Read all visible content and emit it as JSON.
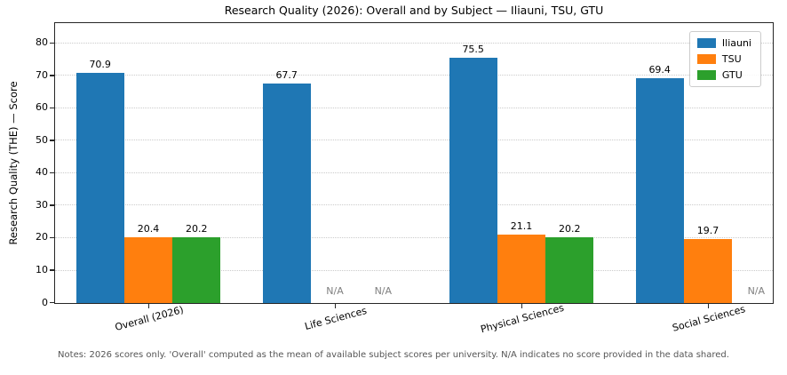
{
  "title": "Research Quality (2026): Overall and by Subject — Iliauni, TSU, GTU",
  "note": "Notes: 2026 scores only. 'Overall' computed as the mean of available subject scores per university. N/A indicates no score provided in the data shared.",
  "chart_data": {
    "type": "bar",
    "title": "Research Quality (2026): Overall and by Subject — Iliauni, TSU, GTU",
    "xlabel": "",
    "ylabel": "Research Quality (THE) — Score",
    "categories": [
      "Overall (2026)",
      "Life Sciences",
      "Physical Sciences",
      "Social Sciences"
    ],
    "series": [
      {
        "name": "Iliauni",
        "color": "#1f77b4",
        "values": [
          70.9,
          67.7,
          75.5,
          69.4
        ]
      },
      {
        "name": "TSU",
        "color": "#ff7f0e",
        "values": [
          20.4,
          null,
          21.1,
          19.7
        ]
      },
      {
        "name": "GTU",
        "color": "#2ca02c",
        "values": [
          20.2,
          null,
          20.2,
          null
        ]
      }
    ],
    "null_label": "N/A",
    "ylim": [
      0,
      86
    ],
    "yticks": [
      0,
      10,
      20,
      30,
      40,
      50,
      60,
      70,
      80
    ],
    "grid": true,
    "grid_style": "dotted",
    "legend_position": "upper right",
    "spine_color": "#262626",
    "na_color": "#808080",
    "note_color": "#555555"
  }
}
